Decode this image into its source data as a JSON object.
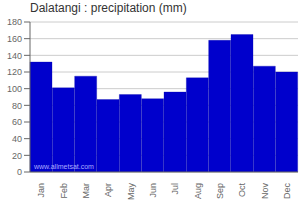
{
  "chart_data": {
    "type": "bar",
    "title": "Dalatangi : precipitation (mm)",
    "categories": [
      "Jan",
      "Feb",
      "Mar",
      "Apr",
      "May",
      "Jun",
      "Jul",
      "Aug",
      "Sep",
      "Oct",
      "Nov",
      "Dec"
    ],
    "values": [
      132,
      101,
      115,
      87,
      93,
      88,
      96,
      113,
      158,
      165,
      127,
      120
    ],
    "color": "#0000CC",
    "ylim": [
      0,
      180
    ],
    "yticks": [
      0,
      20,
      40,
      60,
      80,
      100,
      120,
      140,
      160,
      180
    ],
    "grid": true,
    "annotations": [
      "www.allmetsat.com"
    ]
  }
}
